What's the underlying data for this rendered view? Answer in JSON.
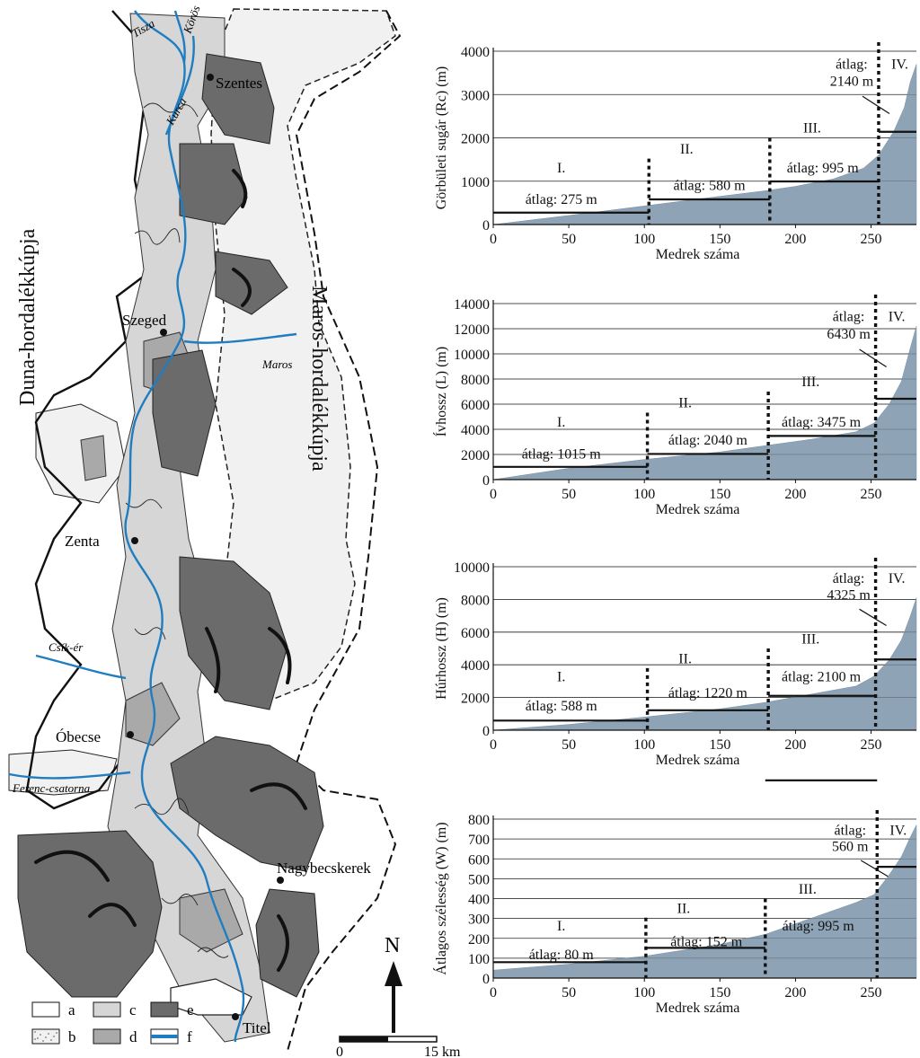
{
  "map": {
    "fan_left": "Duna-hordalékkúpja",
    "fan_right": "Maros-hordalékkúpja",
    "towns": [
      "Szentes",
      "Szeged",
      "Zenta",
      "Óbecse",
      "Nagybecskerek",
      "Titel"
    ],
    "rivers": [
      "Tisza",
      "Körös",
      "Kurca",
      "Maros",
      "Csík-ér",
      "Ferenc-csatorna"
    ],
    "legend": [
      "a",
      "b",
      "c",
      "d",
      "e",
      "f"
    ],
    "legend_colors": [
      "#ffffff",
      "#f1f1f1",
      "#d6d6d6",
      "#a9a9a9",
      "#6b6b6b",
      "#1f7dc0"
    ],
    "north": "N",
    "scale_start": "0",
    "scale_end": "15 km"
  },
  "chart_data": [
    {
      "type": "area",
      "ylabel": "Görbületi sugár (Rc) (m)",
      "xlabel": "Medrek száma",
      "ylim": [
        0,
        4000
      ],
      "yticks": [
        "0",
        "1000",
        "2000",
        "3000",
        "4000"
      ],
      "xticks": [
        "0",
        "50",
        "100",
        "150",
        "200",
        "250"
      ],
      "xlim": [
        0,
        280
      ],
      "profile": [
        [
          0,
          0
        ],
        [
          50,
          210
        ],
        [
          100,
          430
        ],
        [
          150,
          650
        ],
        [
          180,
          780
        ],
        [
          200,
          880
        ],
        [
          225,
          1050
        ],
        [
          245,
          1300
        ],
        [
          255,
          1600
        ],
        [
          265,
          2150
        ],
        [
          272,
          2700
        ],
        [
          276,
          3300
        ],
        [
          280,
          3700
        ]
      ],
      "class_bounds": [
        103,
        183,
        255
      ],
      "classes": [
        "I.",
        "II.",
        "III.",
        "IV."
      ],
      "means": [
        275,
        580,
        995,
        2140
      ],
      "mean_labels": [
        "átlag: 275 m",
        "átlag: 580 m",
        "átlag: 995 m",
        "2140 m"
      ],
      "mean_word": "átlag:"
    },
    {
      "type": "area",
      "ylabel": "Ívhossz (L) (m)",
      "xlabel": "Medrek száma",
      "ylim": [
        0,
        14000
      ],
      "yticks": [
        "0",
        "2000",
        "4000",
        "6000",
        "8000",
        "10000",
        "12000",
        "14000"
      ],
      "xticks": [
        "0",
        "50",
        "100",
        "150",
        "200",
        "250"
      ],
      "xlim": [
        0,
        280
      ],
      "profile": [
        [
          0,
          0
        ],
        [
          50,
          900
        ],
        [
          100,
          1600
        ],
        [
          150,
          2200
        ],
        [
          180,
          2700
        ],
        [
          210,
          3200
        ],
        [
          240,
          3800
        ],
        [
          252,
          4500
        ],
        [
          262,
          6000
        ],
        [
          270,
          7800
        ],
        [
          276,
          10500
        ],
        [
          280,
          12200
        ]
      ],
      "class_bounds": [
        102,
        182,
        253
      ],
      "classes": [
        "I.",
        "II.",
        "III.",
        "IV."
      ],
      "means": [
        1015,
        2040,
        3475,
        6430
      ],
      "mean_labels": [
        "átlag: 1015 m",
        "átlag: 2040 m",
        "átlag: 3475 m",
        "6430 m"
      ],
      "mean_word": "átlag:"
    },
    {
      "type": "area",
      "ylabel": "Húrhossz (H) (m)",
      "xlabel": "Medrek száma",
      "ylim": [
        0,
        10000
      ],
      "yticks": [
        "0",
        "2000",
        "4000",
        "6000",
        "8000",
        "10000"
      ],
      "xticks": [
        "0",
        "50",
        "100",
        "150",
        "200",
        "250"
      ],
      "xlim": [
        0,
        280
      ],
      "profile": [
        [
          0,
          0
        ],
        [
          50,
          350
        ],
        [
          100,
          800
        ],
        [
          150,
          1300
        ],
        [
          180,
          1700
        ],
        [
          210,
          2200
        ],
        [
          240,
          2700
        ],
        [
          252,
          3300
        ],
        [
          262,
          4300
        ],
        [
          270,
          5500
        ],
        [
          276,
          7000
        ],
        [
          280,
          8100
        ]
      ],
      "class_bounds": [
        102,
        182,
        253
      ],
      "classes": [
        "I.",
        "II.",
        "III.",
        "IV."
      ],
      "means": [
        588,
        1220,
        2100,
        4325
      ],
      "mean_labels": [
        "átlag: 588 m",
        "átlag: 1220 m",
        "átlag: 2100 m",
        "4325 m"
      ],
      "mean_word": "átlag:"
    },
    {
      "type": "area",
      "ylabel": "Átlagos szélesség (W) (m)",
      "xlabel": "Medrek száma",
      "ylim": [
        0,
        800
      ],
      "yticks": [
        "0",
        "100",
        "200",
        "300",
        "400",
        "500",
        "600",
        "700",
        "800"
      ],
      "xticks": [
        "0",
        "50",
        "100",
        "150",
        "200",
        "250"
      ],
      "xlim": [
        0,
        280
      ],
      "profile": [
        [
          0,
          40
        ],
        [
          50,
          70
        ],
        [
          100,
          110
        ],
        [
          150,
          170
        ],
        [
          180,
          220
        ],
        [
          210,
          300
        ],
        [
          240,
          380
        ],
        [
          252,
          420
        ],
        [
          262,
          520
        ],
        [
          270,
          610
        ],
        [
          276,
          710
        ],
        [
          280,
          770
        ]
      ],
      "class_bounds": [
        101,
        180,
        254
      ],
      "classes": [
        "I.",
        "II.",
        "III.",
        "IV."
      ],
      "means": [
        80,
        152,
        995,
        560
      ],
      "mean_labels": [
        "átlag: 80 m",
        "átlag: 152 m",
        "átlag: 995 m",
        "560 m"
      ],
      "mean_word": "átlag:"
    }
  ]
}
